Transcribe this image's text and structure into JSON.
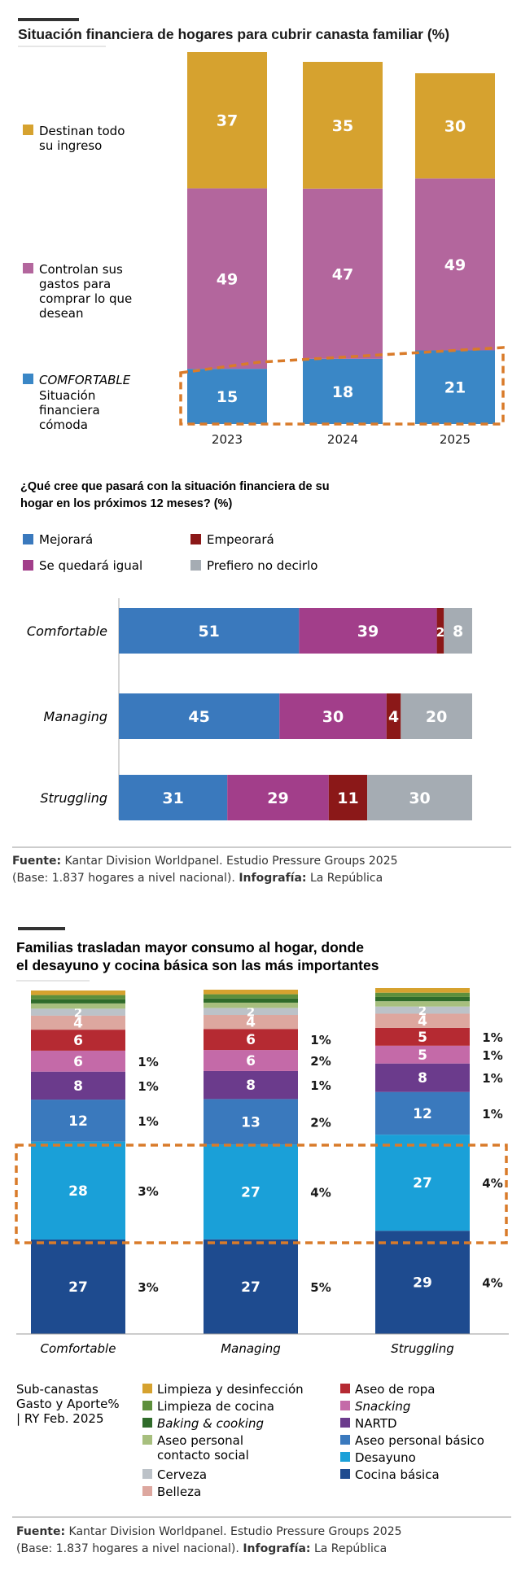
{
  "chart_data": [
    {
      "type": "bar",
      "stacked": true,
      "title": "Situación financiera de hogares para cubrir canasta familiar (%)",
      "categories": [
        "2023",
        "2024",
        "2025"
      ],
      "series": [
        {
          "name": "COMFORTABLE",
          "desc": [
            "Situación",
            "financiera",
            "cómoda"
          ],
          "color": "#3a87c6",
          "values": [
            15,
            18,
            21
          ]
        },
        {
          "name": "Controlan sus gastos para comprar lo que desean",
          "lines": [
            "Controlan sus",
            "gastos para",
            "comprar lo que",
            "desean"
          ],
          "color": "#b3669d",
          "values": [
            49,
            47,
            49
          ]
        },
        {
          "name": "Destinan todo su ingreso",
          "lines": [
            "Destinan todo",
            "su ingreso"
          ],
          "color": "#d6a22f",
          "values": [
            37,
            35,
            30
          ]
        }
      ]
    },
    {
      "type": "bar",
      "orientation": "horizontal",
      "stacked": true,
      "title": [
        "¿Qué cree que pasará con la situación financiera de su",
        "hogar en los próximos 12 meses? (%)"
      ],
      "categories": [
        "Comfortable",
        "Managing",
        "Struggling"
      ],
      "series": [
        {
          "name": "Mejorará",
          "color": "#3a79bd",
          "values": [
            51,
            45,
            31
          ]
        },
        {
          "name": "Se quedará igual",
          "color": "#a23e8a",
          "values": [
            39,
            30,
            29
          ]
        },
        {
          "name": "Empeorará",
          "color": "#8b1818",
          "values": [
            2,
            4,
            11
          ]
        },
        {
          "name": "Prefiero no decirlo",
          "color": "#a5acb3",
          "values": [
            8,
            20,
            30
          ]
        }
      ]
    },
    {
      "type": "bar",
      "stacked": true,
      "title": [
        "Familias trasladan mayor consumo al hogar, donde",
        "el desayuno y cocina básica son las más importantes"
      ],
      "categories": [
        "Comfortable",
        "Managing",
        "Struggling"
      ],
      "legend_title": [
        "Sub-canastas",
        "Gasto y Aporte%",
        "| RY Feb. 2025"
      ],
      "series": [
        {
          "name": "Cocina básica",
          "color": "#1e4b8f",
          "values": [
            27,
            27,
            29
          ],
          "aporte": [
            "3%",
            "5%",
            "4%"
          ]
        },
        {
          "name": "Desayuno",
          "color": "#1aa0d8",
          "values": [
            28,
            27,
            27
          ],
          "aporte": [
            "3%",
            "4%",
            "4%"
          ]
        },
        {
          "name": "Aseo personal básico",
          "color": "#3a79bd",
          "values": [
            12,
            13,
            12
          ],
          "aporte": [
            "1%",
            "2%",
            "1%"
          ]
        },
        {
          "name": "NARTD",
          "color": "#6b3b8c",
          "values": [
            8,
            8,
            8
          ],
          "aporte": [
            "1%",
            "1%",
            "1%"
          ]
        },
        {
          "name": "Snacking",
          "italic": true,
          "color": "#c46aa8",
          "values": [
            6,
            6,
            5
          ],
          "aporte": [
            "1%",
            "2%",
            "1%"
          ]
        },
        {
          "name": "Aseo de ropa",
          "color": "#b52a32",
          "values": [
            6,
            6,
            5
          ],
          "aporte": [
            "",
            "1%",
            "1%"
          ]
        },
        {
          "name": "Belleza",
          "color": "#dda79f",
          "values": [
            4,
            4,
            4
          ],
          "aporte": [
            "",
            "",
            ""
          ]
        },
        {
          "name": "Cerveza",
          "color": "#bcc2c8",
          "values": [
            2,
            2,
            2
          ],
          "aporte": [
            "",
            "",
            ""
          ]
        },
        {
          "name": "Aseo personal contacto social",
          "lines": [
            "Aseo personal",
            "contacto social"
          ],
          "color": "#a7bf7e",
          "values": [
            1.5,
            1.5,
            1.5
          ]
        },
        {
          "name": "Baking & cooking",
          "italic": true,
          "color": "#2f6b2a",
          "values": [
            1.2,
            1.2,
            1.2
          ]
        },
        {
          "name": "Limpieza de cocina",
          "color": "#5d8f3c",
          "values": [
            1.2,
            1.2,
            1.2
          ]
        },
        {
          "name": "Limpieza y desinfección",
          "color": "#d6a22f",
          "values": [
            1.3,
            1.3,
            1.3
          ]
        }
      ]
    }
  ],
  "source": {
    "label": "Fuente:",
    "text": " Kantar Division Worldpanel. Estudio Pressure Groups 2025",
    "line2": "(Base: 1.837 hogares a nivel nacional). ",
    "info_label": "Infografía:",
    "info_text": " La República"
  }
}
